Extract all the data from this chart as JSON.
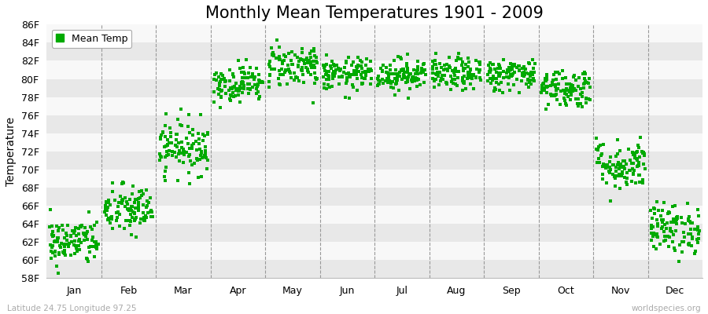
{
  "title": "Monthly Mean Temperatures 1901 - 2009",
  "ylabel": "Temperature",
  "xlabel_bottom_left": "Latitude 24.75 Longitude 97.25",
  "xlabel_bottom_right": "worldspecies.org",
  "legend_label": "Mean Temp",
  "ytick_labels": [
    "58F",
    "60F",
    "62F",
    "64F",
    "66F",
    "68F",
    "70F",
    "72F",
    "74F",
    "76F",
    "78F",
    "80F",
    "82F",
    "84F",
    "86F"
  ],
  "ytick_values": [
    58,
    60,
    62,
    64,
    66,
    68,
    70,
    72,
    74,
    76,
    78,
    80,
    82,
    84,
    86
  ],
  "months": [
    "Jan",
    "Feb",
    "Mar",
    "Apr",
    "May",
    "Jun",
    "Jul",
    "Aug",
    "Sep",
    "Oct",
    "Nov",
    "Dec"
  ],
  "month_centers": [
    0.5,
    1.5,
    2.5,
    3.5,
    4.5,
    5.5,
    6.5,
    7.5,
    8.5,
    9.5,
    10.5,
    11.5
  ],
  "mean_temps_F": [
    62.0,
    65.5,
    72.5,
    79.5,
    81.5,
    80.5,
    80.5,
    80.5,
    80.5,
    79.0,
    70.5,
    63.5
  ],
  "std_temps_F": [
    1.3,
    1.4,
    1.5,
    1.0,
    1.2,
    0.9,
    0.9,
    0.9,
    0.9,
    1.1,
    1.4,
    1.4
  ],
  "n_years": 109,
  "dot_color": "#00aa00",
  "dot_size": 6,
  "background_color": "#ffffff",
  "plot_bg_color": "#ffffff",
  "band_colors": [
    "#e8e8e8",
    "#f8f8f8"
  ],
  "dashed_line_color": "#999999",
  "title_fontsize": 15,
  "axis_label_fontsize": 10,
  "tick_fontsize": 9,
  "legend_fontsize": 9,
  "ylim": [
    58,
    86
  ],
  "xlim": [
    0,
    12
  ]
}
